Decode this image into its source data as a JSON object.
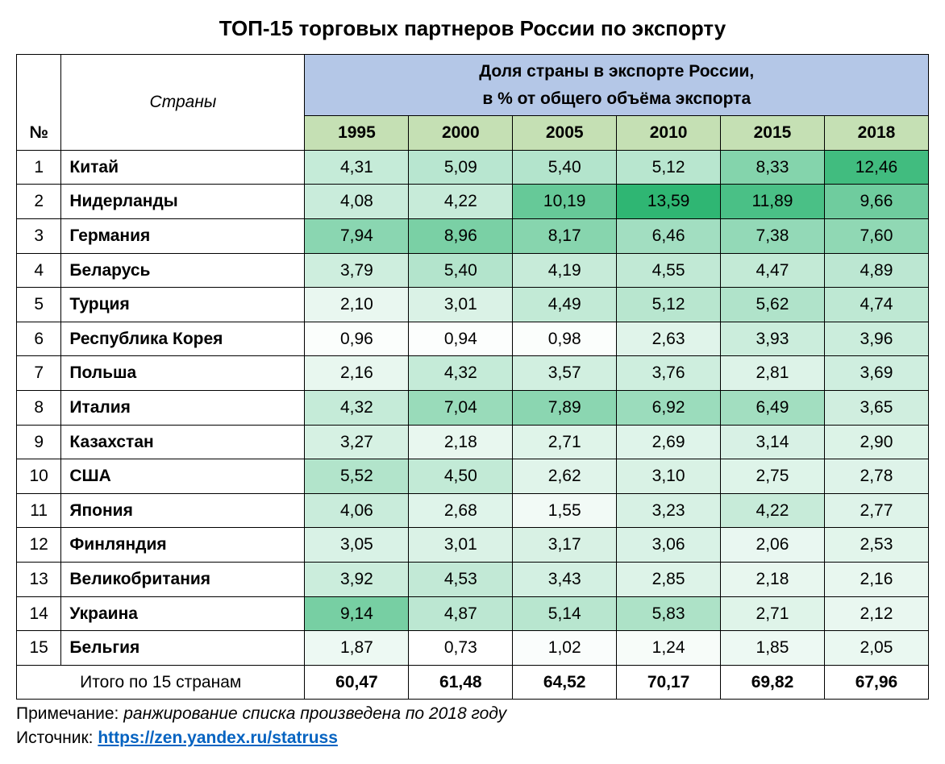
{
  "title": "ТОП-15 торговых партнеров России по экспорту",
  "columns": {
    "num": "№",
    "countries": "Страны",
    "super": "Доля страны в экспорте России,",
    "sub": "в % от общего объёма экспорта",
    "years": [
      "1995",
      "2000",
      "2005",
      "2010",
      "2015",
      "2018"
    ]
  },
  "heatmap": {
    "min_color": "#ffffff",
    "max_color": "#2fb673",
    "min_value": 0.73,
    "max_value": 13.59
  },
  "rows": [
    {
      "n": 1,
      "country": "Китай",
      "v": [
        "4,31",
        "5,09",
        "5,40",
        "5,12",
        "8,33",
        "12,46"
      ],
      "r": [
        4.31,
        5.09,
        5.4,
        5.12,
        8.33,
        12.46
      ]
    },
    {
      "n": 2,
      "country": "Нидерланды",
      "v": [
        "4,08",
        "4,22",
        "10,19",
        "13,59",
        "11,89",
        "9,66"
      ],
      "r": [
        4.08,
        4.22,
        10.19,
        13.59,
        11.89,
        9.66
      ]
    },
    {
      "n": 3,
      "country": "Германия",
      "v": [
        "7,94",
        "8,96",
        "8,17",
        "6,46",
        "7,38",
        "7,60"
      ],
      "r": [
        7.94,
        8.96,
        8.17,
        6.46,
        7.38,
        7.6
      ]
    },
    {
      "n": 4,
      "country": "Беларусь",
      "v": [
        "3,79",
        "5,40",
        "4,19",
        "4,55",
        "4,47",
        "4,89"
      ],
      "r": [
        3.79,
        5.4,
        4.19,
        4.55,
        4.47,
        4.89
      ]
    },
    {
      "n": 5,
      "country": "Турция",
      "v": [
        "2,10",
        "3,01",
        "4,49",
        "5,12",
        "5,62",
        "4,74"
      ],
      "r": [
        2.1,
        3.01,
        4.49,
        5.12,
        5.62,
        4.74
      ]
    },
    {
      "n": 6,
      "country": "Республика Корея",
      "v": [
        "0,96",
        "0,94",
        "0,98",
        "2,63",
        "3,93",
        "3,96"
      ],
      "r": [
        0.96,
        0.94,
        0.98,
        2.63,
        3.93,
        3.96
      ]
    },
    {
      "n": 7,
      "country": "Польша",
      "v": [
        "2,16",
        "4,32",
        "3,57",
        "3,76",
        "2,81",
        "3,69"
      ],
      "r": [
        2.16,
        4.32,
        3.57,
        3.76,
        2.81,
        3.69
      ]
    },
    {
      "n": 8,
      "country": "Италия",
      "v": [
        "4,32",
        "7,04",
        "7,89",
        "6,92",
        "6,49",
        "3,65"
      ],
      "r": [
        4.32,
        7.04,
        7.89,
        6.92,
        6.49,
        3.65
      ]
    },
    {
      "n": 9,
      "country": "Казахстан",
      "v": [
        "3,27",
        "2,18",
        "2,71",
        "2,69",
        "3,14",
        "2,90"
      ],
      "r": [
        3.27,
        2.18,
        2.71,
        2.69,
        3.14,
        2.9
      ]
    },
    {
      "n": 10,
      "country": "США",
      "v": [
        "5,52",
        "4,50",
        "2,62",
        "3,10",
        "2,75",
        "2,78"
      ],
      "r": [
        5.52,
        4.5,
        2.62,
        3.1,
        2.75,
        2.78
      ]
    },
    {
      "n": 11,
      "country": "Япония",
      "v": [
        "4,06",
        "2,68",
        "1,55",
        "3,23",
        "4,22",
        "2,77"
      ],
      "r": [
        4.06,
        2.68,
        1.55,
        3.23,
        4.22,
        2.77
      ]
    },
    {
      "n": 12,
      "country": "Финляндия",
      "v": [
        "3,05",
        "3,01",
        "3,17",
        "3,06",
        "2,06",
        "2,53"
      ],
      "r": [
        3.05,
        3.01,
        3.17,
        3.06,
        2.06,
        2.53
      ]
    },
    {
      "n": 13,
      "country": "Великобритания",
      "v": [
        "3,92",
        "4,53",
        "3,43",
        "2,85",
        "2,18",
        "2,16"
      ],
      "r": [
        3.92,
        4.53,
        3.43,
        2.85,
        2.18,
        2.16
      ]
    },
    {
      "n": 14,
      "country": "Украина",
      "v": [
        "9,14",
        "4,87",
        "5,14",
        "5,83",
        "2,71",
        "2,12"
      ],
      "r": [
        9.14,
        4.87,
        5.14,
        5.83,
        2.71,
        2.12
      ]
    },
    {
      "n": 15,
      "country": "Бельгия",
      "v": [
        "1,87",
        "0,73",
        "1,02",
        "1,24",
        "1,85",
        "2,05"
      ],
      "r": [
        1.87,
        0.73,
        1.02,
        1.24,
        1.85,
        2.05
      ]
    }
  ],
  "total": {
    "label": "Итого по 15 странам",
    "v": [
      "60,47",
      "61,48",
      "64,52",
      "70,17",
      "69,82",
      "67,96"
    ]
  },
  "note": {
    "prefix": "Примечание: ",
    "text": "ранжирование списка произведена по 2018 году"
  },
  "source": {
    "prefix": "Источник: ",
    "link_text": "https://zen.yandex.ru/statruss"
  }
}
